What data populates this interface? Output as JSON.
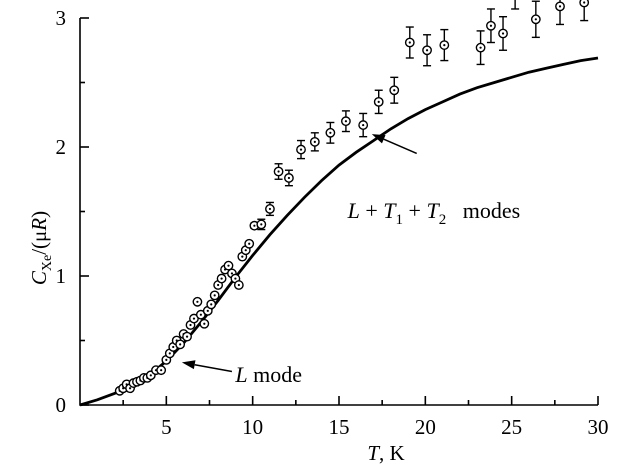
{
  "chart_data": {
    "type": "scatter",
    "title": "",
    "xlabel": {
      "italic": "T",
      "rest": ", K"
    },
    "ylabel": {
      "main": "C",
      "sub": "Xe",
      "rest1": "/(",
      "mu": "μ",
      "R": "R",
      "rest2": ")"
    },
    "xlim": [
      0,
      30
    ],
    "ylim": [
      0,
      3
    ],
    "x_ticks": [
      {
        "value": 5,
        "label": "5"
      },
      {
        "value": 10,
        "label": "10"
      },
      {
        "value": 15,
        "label": "15"
      },
      {
        "value": 20,
        "label": "20"
      },
      {
        "value": 25,
        "label": "25"
      },
      {
        "value": 30,
        "label": "30"
      }
    ],
    "x_minor_ticks": [
      2.5,
      7.5,
      12.5,
      17.5,
      22.5,
      27.5
    ],
    "y_ticks": [
      {
        "value": 0,
        "label": "0"
      },
      {
        "value": 1,
        "label": "1"
      },
      {
        "value": 2,
        "label": "2"
      },
      {
        "value": 3,
        "label": "3"
      }
    ],
    "y_minor_ticks": [
      0.5,
      1.5,
      2.5
    ],
    "grid": false,
    "series": [
      {
        "kind": "points",
        "marker": "circle-dot",
        "points": [
          {
            "x": 2.3,
            "y": 0.11
          },
          {
            "x": 2.5,
            "y": 0.13
          },
          {
            "x": 2.7,
            "y": 0.16
          },
          {
            "x": 2.9,
            "y": 0.13
          },
          {
            "x": 3.1,
            "y": 0.17
          },
          {
            "x": 3.3,
            "y": 0.18
          },
          {
            "x": 3.5,
            "y": 0.19
          },
          {
            "x": 3.7,
            "y": 0.21
          },
          {
            "x": 3.9,
            "y": 0.21
          },
          {
            "x": 4.1,
            "y": 0.23
          },
          {
            "x": 4.4,
            "y": 0.27
          },
          {
            "x": 4.7,
            "y": 0.27
          },
          {
            "x": 5.0,
            "y": 0.35
          },
          {
            "x": 5.2,
            "y": 0.4
          },
          {
            "x": 5.4,
            "y": 0.45
          },
          {
            "x": 5.6,
            "y": 0.5
          },
          {
            "x": 5.8,
            "y": 0.47
          },
          {
            "x": 6.0,
            "y": 0.55
          },
          {
            "x": 6.2,
            "y": 0.53
          },
          {
            "x": 6.4,
            "y": 0.62
          },
          {
            "x": 6.6,
            "y": 0.67
          },
          {
            "x": 6.8,
            "y": 0.8
          },
          {
            "x": 7.0,
            "y": 0.7
          },
          {
            "x": 7.2,
            "y": 0.63
          },
          {
            "x": 7.4,
            "y": 0.73
          },
          {
            "x": 7.6,
            "y": 0.78
          },
          {
            "x": 7.8,
            "y": 0.85
          },
          {
            "x": 8.0,
            "y": 0.93
          },
          {
            "x": 8.2,
            "y": 0.98
          },
          {
            "x": 8.4,
            "y": 1.05
          },
          {
            "x": 8.6,
            "y": 1.08
          },
          {
            "x": 8.8,
            "y": 1.02
          },
          {
            "x": 9.0,
            "y": 0.98
          },
          {
            "x": 9.2,
            "y": 0.93
          },
          {
            "x": 9.4,
            "y": 1.15
          },
          {
            "x": 9.6,
            "y": 1.2
          },
          {
            "x": 9.8,
            "y": 1.25
          },
          {
            "x": 10.1,
            "y": 1.39,
            "err": 0.02
          },
          {
            "x": 10.5,
            "y": 1.4,
            "err": 0.04
          },
          {
            "x": 11.0,
            "y": 1.52,
            "err": 0.05
          },
          {
            "x": 11.5,
            "y": 1.81,
            "err": 0.06
          },
          {
            "x": 12.1,
            "y": 1.76,
            "err": 0.06
          },
          {
            "x": 12.8,
            "y": 1.98,
            "err": 0.07
          },
          {
            "x": 13.6,
            "y": 2.04,
            "err": 0.07
          },
          {
            "x": 14.5,
            "y": 2.11,
            "err": 0.08
          },
          {
            "x": 15.4,
            "y": 2.2,
            "err": 0.08
          },
          {
            "x": 16.4,
            "y": 2.17,
            "err": 0.09
          },
          {
            "x": 17.3,
            "y": 2.35,
            "err": 0.09
          },
          {
            "x": 18.2,
            "y": 2.44,
            "err": 0.1
          },
          {
            "x": 19.1,
            "y": 2.81,
            "err": 0.12
          },
          {
            "x": 20.1,
            "y": 2.75,
            "err": 0.12
          },
          {
            "x": 21.1,
            "y": 2.79,
            "err": 0.12
          },
          {
            "x": 23.2,
            "y": 2.77,
            "err": 0.13
          },
          {
            "x": 23.8,
            "y": 2.94,
            "err": 0.13
          },
          {
            "x": 24.5,
            "y": 2.88,
            "err": 0.13
          },
          {
            "x": 25.2,
            "y": 3.21,
            "err": 0.14
          },
          {
            "x": 26.4,
            "y": 2.99,
            "err": 0.14
          },
          {
            "x": 27.8,
            "y": 3.09,
            "err": 0.14
          },
          {
            "x": 29.2,
            "y": 3.12,
            "err": 0.14
          }
        ]
      },
      {
        "kind": "line",
        "label_ref": "L_T1_T2",
        "points": [
          {
            "x": 0,
            "y": 0.0
          },
          {
            "x": 1,
            "y": 0.04
          },
          {
            "x": 2,
            "y": 0.09
          },
          {
            "x": 3,
            "y": 0.15
          },
          {
            "x": 4,
            "y": 0.23
          },
          {
            "x": 5,
            "y": 0.34
          },
          {
            "x": 6,
            "y": 0.48
          },
          {
            "x": 7,
            "y": 0.64
          },
          {
            "x": 8,
            "y": 0.81
          },
          {
            "x": 9,
            "y": 0.99
          },
          {
            "x": 10,
            "y": 1.16
          },
          {
            "x": 11,
            "y": 1.32
          },
          {
            "x": 12,
            "y": 1.47
          },
          {
            "x": 13,
            "y": 1.61
          },
          {
            "x": 14,
            "y": 1.74
          },
          {
            "x": 15,
            "y": 1.86
          },
          {
            "x": 16,
            "y": 1.96
          },
          {
            "x": 17,
            "y": 2.05
          },
          {
            "x": 18,
            "y": 2.14
          },
          {
            "x": 19,
            "y": 2.22
          },
          {
            "x": 20,
            "y": 2.29
          },
          {
            "x": 21,
            "y": 2.35
          },
          {
            "x": 22,
            "y": 2.41
          },
          {
            "x": 23,
            "y": 2.46
          },
          {
            "x": 24,
            "y": 2.5
          },
          {
            "x": 25,
            "y": 2.54
          },
          {
            "x": 26,
            "y": 2.58
          },
          {
            "x": 27,
            "y": 2.61
          },
          {
            "x": 28,
            "y": 2.64
          },
          {
            "x": 29,
            "y": 2.67
          },
          {
            "x": 30,
            "y": 2.69
          }
        ]
      }
    ],
    "annotations": [
      {
        "id": "L_T1_T2",
        "parts": [
          {
            "text": "L",
            "style": "italic"
          },
          {
            "text": " + ",
            "style": "normal"
          },
          {
            "text": "T",
            "style": "italic"
          },
          {
            "text": "1",
            "style": "sub"
          },
          {
            "text": " + ",
            "style": "normal"
          },
          {
            "text": "T",
            "style": "italic"
          },
          {
            "text": "2",
            "style": "sub"
          },
          {
            "text": "   modes",
            "style": "normal"
          }
        ],
        "label_at": {
          "x": 15.5,
          "y": 1.45
        },
        "arrow_from": {
          "x": 19.5,
          "y": 1.95
        },
        "arrow_to": {
          "x": 16.9,
          "y": 2.1
        }
      },
      {
        "id": "L_mode",
        "parts": [
          {
            "text": "L",
            "style": "italic"
          },
          {
            "text": " mode",
            "style": "normal"
          }
        ],
        "label_at": {
          "x": 9.0,
          "y": 0.18
        },
        "arrow_from": {
          "x": 8.8,
          "y": 0.26
        },
        "arrow_to": {
          "x": 5.9,
          "y": 0.33
        }
      }
    ]
  }
}
